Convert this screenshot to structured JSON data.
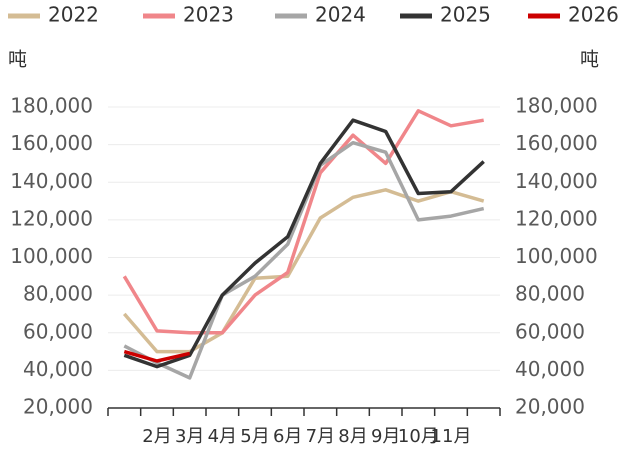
{
  "chart_data": {
    "type": "line",
    "y_label": "吨",
    "y2_label": "吨",
    "categories": [
      null,
      "2月",
      "3月",
      "4月",
      "5月",
      "6月",
      "7月",
      "8月",
      "9月",
      "10月",
      "11月",
      null
    ],
    "series": [
      {
        "name": "2022",
        "color": "#d4bc94",
        "values": [
          70000,
          50000,
          50000,
          60000,
          89000,
          90000,
          121000,
          132000,
          136000,
          130000,
          135000,
          130000
        ]
      },
      {
        "name": "2023",
        "color": "#f0868a",
        "values": [
          90000,
          61000,
          60000,
          60000,
          80000,
          92000,
          145000,
          165000,
          150000,
          178000,
          170000,
          173000
        ]
      },
      {
        "name": "2024",
        "color": "#a6a6a6",
        "values": [
          53000,
          44000,
          36000,
          80000,
          90000,
          107000,
          149000,
          161000,
          156000,
          120000,
          122000,
          126000
        ]
      },
      {
        "name": "2025",
        "color": "#333333",
        "values": [
          48000,
          42000,
          48000,
          80000,
          97000,
          111000,
          150000,
          173000,
          167000,
          134000,
          135000,
          151000
        ]
      },
      {
        "name": "2026",
        "color": "#cc0000",
        "values": [
          50000,
          45000,
          49000,
          null,
          null,
          null,
          null,
          null,
          null,
          null,
          null,
          null
        ]
      }
    ],
    "ylim": [
      20000,
      180000
    ],
    "yticks": [
      {
        "value": 20000,
        "label": "20,000"
      },
      {
        "value": 40000,
        "label": "40,000"
      },
      {
        "value": 60000,
        "label": "60,000"
      },
      {
        "value": 80000,
        "label": "80,000"
      },
      {
        "value": 100000,
        "label": "100,000"
      },
      {
        "value": 120000,
        "label": "120,000"
      },
      {
        "value": 140000,
        "label": "140,000"
      },
      {
        "value": 160000,
        "label": "160,000"
      },
      {
        "value": 180000,
        "label": "180,000"
      }
    ],
    "y2lim": [
      20000,
      180000
    ],
    "y2ticks": [
      {
        "value": 20000,
        "label": "20,000"
      },
      {
        "value": 40000,
        "label": "40,000"
      },
      {
        "value": 60000,
        "label": "60,000"
      },
      {
        "value": 80000,
        "label": "80,000"
      },
      {
        "value": 100000,
        "label": "100,000"
      },
      {
        "value": 120000,
        "label": "120,000"
      },
      {
        "value": 140000,
        "label": "140,000"
      },
      {
        "value": 160000,
        "label": "160,000"
      },
      {
        "value": 180000,
        "label": "180,000"
      }
    ],
    "grid": true,
    "legend": "top"
  }
}
